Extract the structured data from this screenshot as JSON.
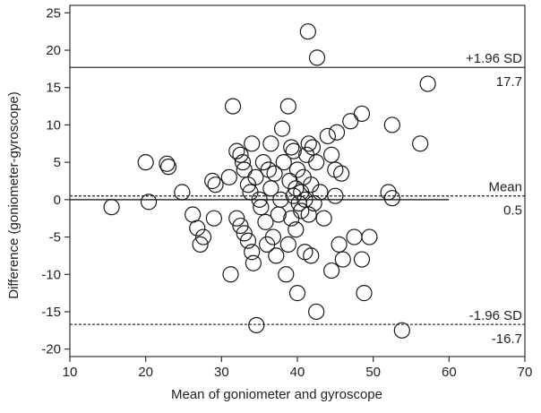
{
  "chart_data": {
    "type": "scatter",
    "title": "",
    "xlabel": "Mean of goniometer and gyroscope",
    "ylabel": "Difference (goniometer-gyroscope)",
    "xlim": [
      10,
      70
    ],
    "ylim": [
      -21,
      26
    ],
    "xticks": [
      10,
      20,
      30,
      40,
      50,
      60,
      70
    ],
    "yticks": [
      -20,
      -15,
      -10,
      -5,
      0,
      5,
      10,
      15,
      20,
      25
    ],
    "grid": false,
    "marker": "open-circle",
    "colors": {
      "marker": "#1a1a1a",
      "line": "#333333"
    },
    "reference_lines": [
      {
        "label": "+1.96 SD",
        "value": 17.7,
        "value_label": "17.7",
        "style": "solid"
      },
      {
        "label": "Mean",
        "value": 0.5,
        "value_label": "0.5",
        "style": "dashed"
      },
      {
        "label": "-1.96 SD",
        "value": -16.7,
        "value_label": "-16.7",
        "style": "dashed"
      }
    ],
    "zero_line": {
      "value": 0,
      "x_range": [
        10,
        60
      ],
      "style": "solid"
    },
    "points": [
      {
        "x": 15.5,
        "y": -1
      },
      {
        "x": 20.0,
        "y": 5
      },
      {
        "x": 20.4,
        "y": -0.3
      },
      {
        "x": 22.8,
        "y": 4.8
      },
      {
        "x": 23.0,
        "y": 4.4
      },
      {
        "x": 24.8,
        "y": 1
      },
      {
        "x": 26.2,
        "y": -2
      },
      {
        "x": 26.8,
        "y": -3.8
      },
      {
        "x": 27.2,
        "y": -6
      },
      {
        "x": 27.6,
        "y": -5
      },
      {
        "x": 28.8,
        "y": 2.5
      },
      {
        "x": 29.2,
        "y": 2.0
      },
      {
        "x": 29.0,
        "y": -2.5
      },
      {
        "x": 31.5,
        "y": 12.5
      },
      {
        "x": 31.2,
        "y": -10
      },
      {
        "x": 31.0,
        "y": 3.0
      },
      {
        "x": 32.0,
        "y": 6.5
      },
      {
        "x": 32.5,
        "y": 6.0
      },
      {
        "x": 32.8,
        "y": 5.0
      },
      {
        "x": 33.0,
        "y": 4.0
      },
      {
        "x": 33.5,
        "y": 2.0
      },
      {
        "x": 33.8,
        "y": 1.0
      },
      {
        "x": 32.0,
        "y": -2.5
      },
      {
        "x": 32.5,
        "y": -3.5
      },
      {
        "x": 33.0,
        "y": -4.5
      },
      {
        "x": 33.5,
        "y": -5.5
      },
      {
        "x": 34.0,
        "y": -7.0
      },
      {
        "x": 34.2,
        "y": -8.5
      },
      {
        "x": 34.0,
        "y": 7.5
      },
      {
        "x": 34.5,
        "y": 3.0
      },
      {
        "x": 35.0,
        "y": 0.0
      },
      {
        "x": 35.2,
        "y": -1.0
      },
      {
        "x": 34.6,
        "y": -16.8
      },
      {
        "x": 35.5,
        "y": 5.0
      },
      {
        "x": 35.8,
        "y": -3.0
      },
      {
        "x": 36.0,
        "y": -6.0
      },
      {
        "x": 36.2,
        "y": 4.0
      },
      {
        "x": 36.5,
        "y": 7.5
      },
      {
        "x": 36.5,
        "y": 1.5
      },
      {
        "x": 36.8,
        "y": -5.0
      },
      {
        "x": 37.0,
        "y": 3.5
      },
      {
        "x": 37.2,
        "y": -7.5
      },
      {
        "x": 37.5,
        "y": -2.0
      },
      {
        "x": 37.8,
        "y": 0.0
      },
      {
        "x": 38.0,
        "y": 9.5
      },
      {
        "x": 38.2,
        "y": 5.0
      },
      {
        "x": 38.5,
        "y": -10.0
      },
      {
        "x": 38.8,
        "y": -6.0
      },
      {
        "x": 38.8,
        "y": 12.5
      },
      {
        "x": 39.0,
        "y": 2.5
      },
      {
        "x": 39.2,
        "y": 7.0
      },
      {
        "x": 39.2,
        "y": -2.5
      },
      {
        "x": 39.5,
        "y": 6.5
      },
      {
        "x": 39.5,
        "y": 0.5
      },
      {
        "x": 39.8,
        "y": 1.5
      },
      {
        "x": 39.8,
        "y": -4.0
      },
      {
        "x": 40.0,
        "y": -12.5
      },
      {
        "x": 40.0,
        "y": 4.0
      },
      {
        "x": 40.2,
        "y": -0.5
      },
      {
        "x": 40.5,
        "y": 1.0
      },
      {
        "x": 40.5,
        "y": -1.5
      },
      {
        "x": 40.8,
        "y": 3.0
      },
      {
        "x": 41.0,
        "y": 0.0
      },
      {
        "x": 41.2,
        "y": 6.0
      },
      {
        "x": 41.0,
        "y": -7.0
      },
      {
        "x": 41.5,
        "y": 7.5
      },
      {
        "x": 41.5,
        "y": -2.0
      },
      {
        "x": 41.8,
        "y": 2.0
      },
      {
        "x": 41.8,
        "y": -7.5
      },
      {
        "x": 41.4,
        "y": 22.5
      },
      {
        "x": 42.0,
        "y": 7.0
      },
      {
        "x": 42.2,
        "y": -0.5
      },
      {
        "x": 42.5,
        "y": 5.0
      },
      {
        "x": 42.5,
        "y": -15.0
      },
      {
        "x": 42.6,
        "y": 19.0
      },
      {
        "x": 43.0,
        "y": 1.0
      },
      {
        "x": 43.5,
        "y": -2.5
      },
      {
        "x": 44.0,
        "y": 8.5
      },
      {
        "x": 44.5,
        "y": 6.0
      },
      {
        "x": 44.5,
        "y": -9.5
      },
      {
        "x": 45.0,
        "y": 0.5
      },
      {
        "x": 45.0,
        "y": 4.0
      },
      {
        "x": 45.2,
        "y": 9.0
      },
      {
        "x": 45.5,
        "y": -6.0
      },
      {
        "x": 45.8,
        "y": 3.5
      },
      {
        "x": 46.0,
        "y": -8.0
      },
      {
        "x": 47.0,
        "y": 10.5
      },
      {
        "x": 47.5,
        "y": -5.0
      },
      {
        "x": 48.5,
        "y": 11.5
      },
      {
        "x": 48.5,
        "y": -8.0
      },
      {
        "x": 48.8,
        "y": -12.5
      },
      {
        "x": 49.5,
        "y": -5.0
      },
      {
        "x": 52.0,
        "y": 1.0
      },
      {
        "x": 52.5,
        "y": 10.0
      },
      {
        "x": 52.5,
        "y": 0.2
      },
      {
        "x": 53.8,
        "y": -17.5
      },
      {
        "x": 56.2,
        "y": 7.5
      },
      {
        "x": 57.2,
        "y": 15.5
      }
    ]
  }
}
